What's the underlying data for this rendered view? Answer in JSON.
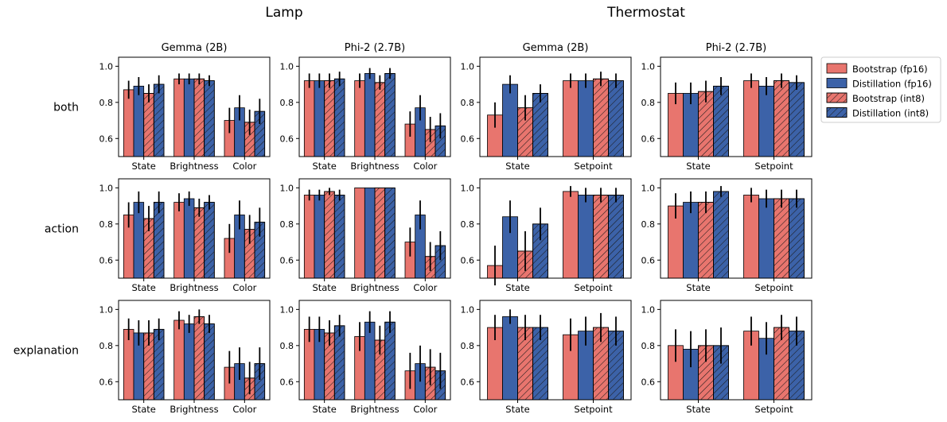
{
  "group_titles": [
    "Lamp",
    "Thermostat"
  ],
  "row_labels": [
    "both",
    "action",
    "explanation"
  ],
  "legend": [
    {
      "label": "Bootstrap (fp16)",
      "color": "#e8756e",
      "hatch": false
    },
    {
      "label": "Distillation (fp16)",
      "color": "#3c62a8",
      "hatch": false
    },
    {
      "label": "Bootstrap (int8)",
      "color": "#e8756e",
      "hatch": true
    },
    {
      "label": "Distillation (int8)",
      "color": "#3c62a8",
      "hatch": true
    }
  ],
  "chart_data": [
    {
      "type": "bar",
      "row": "both",
      "col_title": "Gemma (2B)",
      "categories": [
        "State",
        "Brightness",
        "Color"
      ],
      "ylim": [
        0.5,
        1.05
      ],
      "yticks": [
        0.6,
        0.8,
        1.0
      ],
      "series": [
        {
          "name": "Bootstrap (fp16)",
          "values": [
            0.87,
            0.93,
            0.7
          ],
          "err": [
            0.05,
            0.03,
            0.07
          ]
        },
        {
          "name": "Distillation (fp16)",
          "values": [
            0.89,
            0.93,
            0.77
          ],
          "err": [
            0.05,
            0.03,
            0.07
          ]
        },
        {
          "name": "Bootstrap (int8)",
          "values": [
            0.85,
            0.93,
            0.69
          ],
          "err": [
            0.05,
            0.03,
            0.07
          ]
        },
        {
          "name": "Distillation (int8)",
          "values": [
            0.9,
            0.92,
            0.75
          ],
          "err": [
            0.05,
            0.03,
            0.07
          ]
        }
      ]
    },
    {
      "type": "bar",
      "row": "both",
      "col_title": "Phi-2 (2.7B)",
      "categories": [
        "State",
        "Brightness",
        "Color"
      ],
      "ylim": [
        0.5,
        1.05
      ],
      "yticks": [
        0.6,
        0.8,
        1.0
      ],
      "series": [
        {
          "name": "Bootstrap (fp16)",
          "values": [
            0.92,
            0.92,
            0.68
          ],
          "err": [
            0.04,
            0.04,
            0.07
          ]
        },
        {
          "name": "Distillation (fp16)",
          "values": [
            0.92,
            0.96,
            0.77
          ],
          "err": [
            0.04,
            0.03,
            0.07
          ]
        },
        {
          "name": "Bootstrap (int8)",
          "values": [
            0.92,
            0.91,
            0.65
          ],
          "err": [
            0.04,
            0.04,
            0.07
          ]
        },
        {
          "name": "Distillation (int8)",
          "values": [
            0.93,
            0.96,
            0.67
          ],
          "err": [
            0.04,
            0.03,
            0.07
          ]
        }
      ]
    },
    {
      "type": "bar",
      "row": "both",
      "col_title": "Gemma (2B)",
      "categories": [
        "State",
        "Setpoint"
      ],
      "ylim": [
        0.5,
        1.05
      ],
      "yticks": [
        0.6,
        0.8,
        1.0
      ],
      "series": [
        {
          "name": "Bootstrap (fp16)",
          "values": [
            0.73,
            0.92
          ],
          "err": [
            0.07,
            0.04
          ]
        },
        {
          "name": "Distillation (fp16)",
          "values": [
            0.9,
            0.92
          ],
          "err": [
            0.05,
            0.04
          ]
        },
        {
          "name": "Bootstrap (int8)",
          "values": [
            0.77,
            0.93
          ],
          "err": [
            0.07,
            0.04
          ]
        },
        {
          "name": "Distillation (int8)",
          "values": [
            0.85,
            0.92
          ],
          "err": [
            0.05,
            0.04
          ]
        }
      ]
    },
    {
      "type": "bar",
      "row": "both",
      "col_title": "Phi-2 (2.7B)",
      "categories": [
        "State",
        "Setpoint"
      ],
      "ylim": [
        0.5,
        1.05
      ],
      "yticks": [
        0.6,
        0.8,
        1.0
      ],
      "series": [
        {
          "name": "Bootstrap (fp16)",
          "values": [
            0.85,
            0.92
          ],
          "err": [
            0.06,
            0.04
          ]
        },
        {
          "name": "Distillation (fp16)",
          "values": [
            0.85,
            0.89
          ],
          "err": [
            0.06,
            0.05
          ]
        },
        {
          "name": "Bootstrap (int8)",
          "values": [
            0.86,
            0.92
          ],
          "err": [
            0.06,
            0.04
          ]
        },
        {
          "name": "Distillation (int8)",
          "values": [
            0.89,
            0.91
          ],
          "err": [
            0.05,
            0.04
          ]
        }
      ]
    },
    {
      "type": "bar",
      "row": "action",
      "col_title": "Gemma (2B)",
      "categories": [
        "State",
        "Brightness",
        "Color"
      ],
      "ylim": [
        0.5,
        1.05
      ],
      "yticks": [
        0.6,
        0.8,
        1.0
      ],
      "series": [
        {
          "name": "Bootstrap (fp16)",
          "values": [
            0.85,
            0.92,
            0.72
          ],
          "err": [
            0.07,
            0.05,
            0.08
          ]
        },
        {
          "name": "Distillation (fp16)",
          "values": [
            0.92,
            0.94,
            0.85
          ],
          "err": [
            0.06,
            0.04,
            0.08
          ]
        },
        {
          "name": "Bootstrap (int8)",
          "values": [
            0.83,
            0.89,
            0.77
          ],
          "err": [
            0.07,
            0.05,
            0.08
          ]
        },
        {
          "name": "Distillation (int8)",
          "values": [
            0.92,
            0.92,
            0.81
          ],
          "err": [
            0.06,
            0.04,
            0.08
          ]
        }
      ]
    },
    {
      "type": "bar",
      "row": "action",
      "col_title": "Phi-2 (2.7B)",
      "categories": [
        "State",
        "Brightness",
        "Color"
      ],
      "ylim": [
        0.5,
        1.05
      ],
      "yticks": [
        0.6,
        0.8,
        1.0
      ],
      "series": [
        {
          "name": "Bootstrap (fp16)",
          "values": [
            0.96,
            1.0,
            0.7
          ],
          "err": [
            0.03,
            0.0,
            0.08
          ]
        },
        {
          "name": "Distillation (fp16)",
          "values": [
            0.96,
            1.0,
            0.85
          ],
          "err": [
            0.03,
            0.0,
            0.08
          ]
        },
        {
          "name": "Bootstrap (int8)",
          "values": [
            0.98,
            1.0,
            0.62
          ],
          "err": [
            0.02,
            0.0,
            0.08
          ]
        },
        {
          "name": "Distillation (int8)",
          "values": [
            0.96,
            1.0,
            0.68
          ],
          "err": [
            0.03,
            0.0,
            0.08
          ]
        }
      ]
    },
    {
      "type": "bar",
      "row": "action",
      "col_title": "Gemma (2B)",
      "categories": [
        "State",
        "Setpoint"
      ],
      "ylim": [
        0.5,
        1.05
      ],
      "yticks": [
        0.6,
        0.8,
        1.0
      ],
      "series": [
        {
          "name": "Bootstrap (fp16)",
          "values": [
            0.57,
            0.98
          ],
          "err": [
            0.11,
            0.03
          ]
        },
        {
          "name": "Distillation (fp16)",
          "values": [
            0.84,
            0.96
          ],
          "err": [
            0.09,
            0.04
          ]
        },
        {
          "name": "Bootstrap (int8)",
          "values": [
            0.65,
            0.96
          ],
          "err": [
            0.11,
            0.04
          ]
        },
        {
          "name": "Distillation (int8)",
          "values": [
            0.8,
            0.96
          ],
          "err": [
            0.09,
            0.04
          ]
        }
      ]
    },
    {
      "type": "bar",
      "row": "action",
      "col_title": "Phi-2 (2.7B)",
      "categories": [
        "State",
        "Setpoint"
      ],
      "ylim": [
        0.5,
        1.05
      ],
      "yticks": [
        0.6,
        0.8,
        1.0
      ],
      "series": [
        {
          "name": "Bootstrap (fp16)",
          "values": [
            0.9,
            0.96
          ],
          "err": [
            0.07,
            0.04
          ]
        },
        {
          "name": "Distillation (fp16)",
          "values": [
            0.92,
            0.94
          ],
          "err": [
            0.06,
            0.05
          ]
        },
        {
          "name": "Bootstrap (int8)",
          "values": [
            0.92,
            0.94
          ],
          "err": [
            0.06,
            0.05
          ]
        },
        {
          "name": "Distillation (int8)",
          "values": [
            0.98,
            0.94
          ],
          "err": [
            0.03,
            0.05
          ]
        }
      ]
    },
    {
      "type": "bar",
      "row": "explanation",
      "col_title": "Gemma (2B)",
      "categories": [
        "State",
        "Brightness",
        "Color"
      ],
      "ylim": [
        0.5,
        1.05
      ],
      "yticks": [
        0.6,
        0.8,
        1.0
      ],
      "series": [
        {
          "name": "Bootstrap (fp16)",
          "values": [
            0.89,
            0.94,
            0.68
          ],
          "err": [
            0.06,
            0.05,
            0.09
          ]
        },
        {
          "name": "Distillation (fp16)",
          "values": [
            0.87,
            0.92,
            0.7
          ],
          "err": [
            0.07,
            0.05,
            0.09
          ]
        },
        {
          "name": "Bootstrap (int8)",
          "values": [
            0.87,
            0.96,
            0.62
          ],
          "err": [
            0.07,
            0.04,
            0.09
          ]
        },
        {
          "name": "Distillation (int8)",
          "values": [
            0.89,
            0.92,
            0.7
          ],
          "err": [
            0.06,
            0.05,
            0.09
          ]
        }
      ]
    },
    {
      "type": "bar",
      "row": "explanation",
      "col_title": "Phi-2 (2.7B)",
      "categories": [
        "State",
        "Brightness",
        "Color"
      ],
      "ylim": [
        0.5,
        1.05
      ],
      "yticks": [
        0.6,
        0.8,
        1.0
      ],
      "series": [
        {
          "name": "Bootstrap (fp16)",
          "values": [
            0.89,
            0.85,
            0.66
          ],
          "err": [
            0.07,
            0.08,
            0.1
          ]
        },
        {
          "name": "Distillation (fp16)",
          "values": [
            0.89,
            0.93,
            0.7
          ],
          "err": [
            0.07,
            0.06,
            0.1
          ]
        },
        {
          "name": "Bootstrap (int8)",
          "values": [
            0.87,
            0.83,
            0.68
          ],
          "err": [
            0.07,
            0.08,
            0.1
          ]
        },
        {
          "name": "Distillation (int8)",
          "values": [
            0.91,
            0.93,
            0.66
          ],
          "err": [
            0.06,
            0.06,
            0.1
          ]
        }
      ]
    },
    {
      "type": "bar",
      "row": "explanation",
      "col_title": "Gemma (2B)",
      "categories": [
        "State",
        "Setpoint"
      ],
      "ylim": [
        0.5,
        1.05
      ],
      "yticks": [
        0.6,
        0.8,
        1.0
      ],
      "series": [
        {
          "name": "Bootstrap (fp16)",
          "values": [
            0.9,
            0.86
          ],
          "err": [
            0.07,
            0.09
          ]
        },
        {
          "name": "Distillation (fp16)",
          "values": [
            0.96,
            0.88
          ],
          "err": [
            0.04,
            0.08
          ]
        },
        {
          "name": "Bootstrap (int8)",
          "values": [
            0.9,
            0.9
          ],
          "err": [
            0.07,
            0.08
          ]
        },
        {
          "name": "Distillation (int8)",
          "values": [
            0.9,
            0.88
          ],
          "err": [
            0.07,
            0.08
          ]
        }
      ]
    },
    {
      "type": "bar",
      "row": "explanation",
      "col_title": "Phi-2 (2.7B)",
      "categories": [
        "State",
        "Setpoint"
      ],
      "ylim": [
        0.5,
        1.05
      ],
      "yticks": [
        0.6,
        0.8,
        1.0
      ],
      "series": [
        {
          "name": "Bootstrap (fp16)",
          "values": [
            0.8,
            0.88
          ],
          "err": [
            0.09,
            0.08
          ]
        },
        {
          "name": "Distillation (fp16)",
          "values": [
            0.78,
            0.84
          ],
          "err": [
            0.1,
            0.09
          ]
        },
        {
          "name": "Bootstrap (int8)",
          "values": [
            0.8,
            0.9
          ],
          "err": [
            0.09,
            0.07
          ]
        },
        {
          "name": "Distillation (int8)",
          "values": [
            0.8,
            0.88
          ],
          "err": [
            0.1,
            0.08
          ]
        }
      ]
    }
  ]
}
